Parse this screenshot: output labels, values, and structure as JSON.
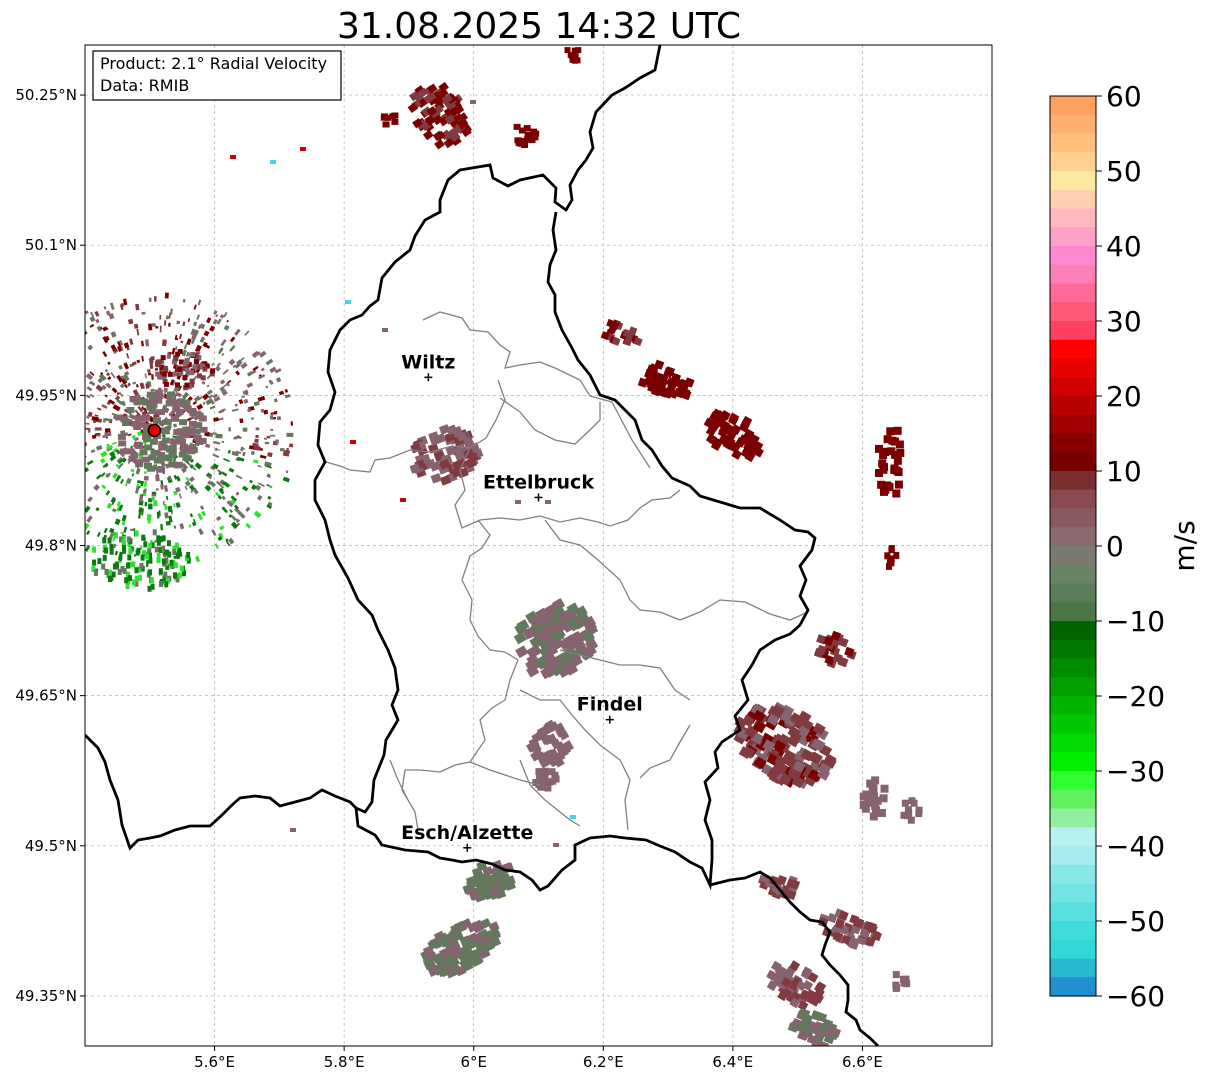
{
  "title": "31.08.2025 14:32 UTC",
  "info_box": {
    "product": "Product: 2.1° Radial Velocity",
    "data": "Data: RMIB"
  },
  "axes": {
    "x_ticks": [
      {
        "label": "5.6°E",
        "value": 5.6
      },
      {
        "label": "5.8°E",
        "value": 5.8
      },
      {
        "label": "6°E",
        "value": 6.0
      },
      {
        "label": "6.2°E",
        "value": 6.2
      },
      {
        "label": "6.4°E",
        "value": 6.4
      },
      {
        "label": "6.6°E",
        "value": 6.6
      }
    ],
    "y_ticks": [
      {
        "label": "50.25°N",
        "value": 50.25
      },
      {
        "label": "50.1°N",
        "value": 50.1
      },
      {
        "label": "49.95°N",
        "value": 49.95
      },
      {
        "label": "49.8°N",
        "value": 49.8
      },
      {
        "label": "49.65°N",
        "value": 49.65
      },
      {
        "label": "49.5°N",
        "value": 49.5
      },
      {
        "label": "49.35°N",
        "value": 49.35
      }
    ],
    "lon_range": [
      5.4,
      6.8
    ],
    "lat_range": [
      49.3,
      50.3
    ],
    "grid": true
  },
  "cities": [
    {
      "name": "Wiltz",
      "lon": 5.93,
      "lat": 49.968
    },
    {
      "name": "Ettelbruck",
      "lon": 6.1,
      "lat": 49.848
    },
    {
      "name": "Findel",
      "lon": 6.21,
      "lat": 49.626
    },
    {
      "name": "Esch/Alzette",
      "lon": 5.99,
      "lat": 49.498
    }
  ],
  "radar_site": {
    "lon": 5.507,
    "lat": 49.915
  },
  "colorbar": {
    "label": "m/s",
    "range": [
      -60,
      60
    ],
    "ticks": [
      {
        "label": "60",
        "value": 60
      },
      {
        "label": "50",
        "value": 50
      },
      {
        "label": "40",
        "value": 40
      },
      {
        "label": "30",
        "value": 30
      },
      {
        "label": "20",
        "value": 20
      },
      {
        "label": "10",
        "value": 10
      },
      {
        "label": "0",
        "value": 0
      },
      {
        "label": "−10",
        "value": -10
      },
      {
        "label": "−20",
        "value": -20
      },
      {
        "label": "−30",
        "value": -30
      },
      {
        "label": "−40",
        "value": -40
      },
      {
        "label": "−50",
        "value": -50
      },
      {
        "label": "−60",
        "value": -60
      }
    ],
    "colors_top_to_bottom": [
      "#ffa060",
      "#ffb070",
      "#ffc080",
      "#ffd090",
      "#ffe8a0",
      "#ffd0b0",
      "#ffb8c0",
      "#ffa0c8",
      "#ff88d0",
      "#ff80b8",
      "#ff6a98",
      "#ff5878",
      "#ff4060",
      "#ff0000",
      "#e80000",
      "#d00000",
      "#b80000",
      "#a00000",
      "#880000",
      "#780000",
      "#7a2e30",
      "#8a4a50",
      "#8a5a62",
      "#8a6a6e",
      "#7a7a72",
      "#6a8266",
      "#5a7c58",
      "#4a7648",
      "#006400",
      "#007800",
      "#008c00",
      "#00a000",
      "#00b400",
      "#00c800",
      "#00dc00",
      "#00f000",
      "#30ff30",
      "#60f060",
      "#90f0a0",
      "#b8f0f0",
      "#a8ecf0",
      "#88e8e8",
      "#70e4e4",
      "#58e0e0",
      "#40dcdc",
      "#30d8d8",
      "#28b8d0",
      "#2090d0"
    ]
  },
  "echo_colors": {
    "dark_red": "#7a0000",
    "maroon": "#803a40",
    "mauve": "#86636e",
    "grey_green": "#63785c",
    "green": "#0a7a10",
    "bright_green": "#30e030",
    "red": "#d00000",
    "cyan": "#40d8e0"
  }
}
